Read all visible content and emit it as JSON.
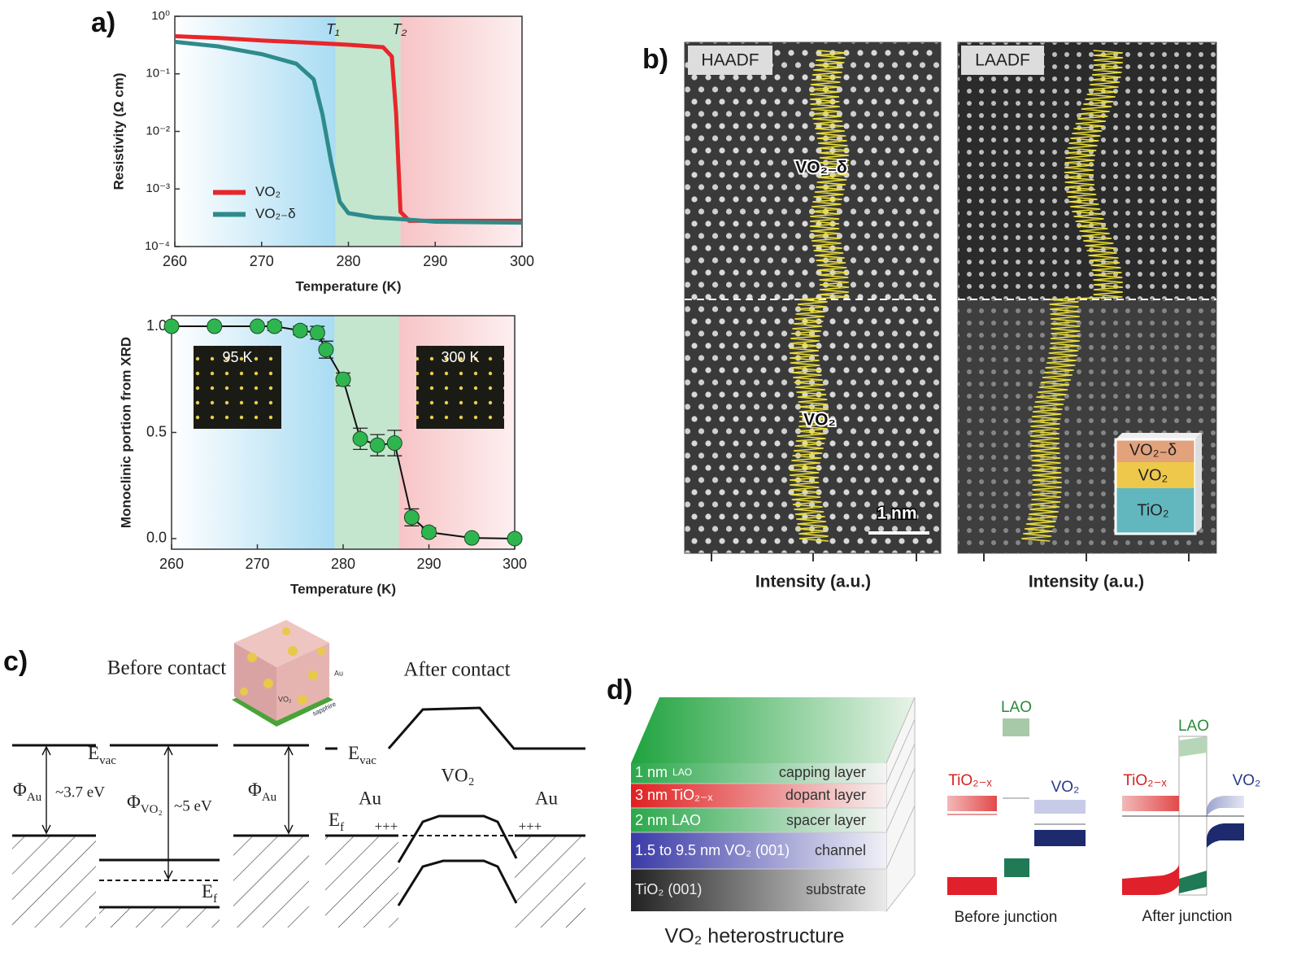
{
  "chart_data": [
    {
      "type": "line",
      "panel": "a)",
      "xlabel": "Temperature (K)",
      "ylabel": "Resistivity (Ω cm)",
      "log_y": true,
      "xlim": [
        260,
        300
      ],
      "xticks": [
        260,
        270,
        280,
        290,
        300
      ],
      "ylim": [
        0.0001,
        1
      ],
      "yticks": [
        {
          "value": 1,
          "label": "10⁰"
        },
        {
          "value": 0.1,
          "label": "10⁻¹"
        },
        {
          "value": 0.01,
          "label": "10⁻²"
        },
        {
          "value": 0.001,
          "label": "10⁻³"
        },
        {
          "value": 0.0001,
          "label": "10⁻⁴"
        }
      ],
      "legend": "center left",
      "regions": [
        {
          "from": 260,
          "to": 278.5,
          "colors": [
            "#ffffff",
            "#a9dcf3"
          ]
        },
        {
          "from": 278.5,
          "to": 286,
          "colors": [
            "#c4e6cf",
            "#c4e6cf"
          ]
        },
        {
          "from": 286,
          "to": 300,
          "colors": [
            "#f7c4c6",
            "#fdeff0"
          ]
        }
      ],
      "annotations": [
        {
          "text": "T₁",
          "x": 278.2
        },
        {
          "text": "T₂",
          "x": 285.9
        }
      ],
      "series": [
        {
          "name": "VO₂",
          "color": "#e8262b",
          "x": [
            260,
            265,
            270,
            275,
            280,
            284,
            285,
            285.5,
            286,
            287,
            290,
            300
          ],
          "values": [
            0.45,
            0.42,
            0.38,
            0.35,
            0.32,
            0.29,
            0.2,
            0.02,
            0.0004,
            0.00028,
            0.00028,
            0.00028
          ]
        },
        {
          "name": "VO₂₋δ",
          "color": "#2e8b8b",
          "x": [
            260,
            265,
            270,
            274,
            276,
            277,
            278,
            279,
            280,
            283,
            286,
            290,
            300
          ],
          "values": [
            0.36,
            0.3,
            0.22,
            0.15,
            0.08,
            0.02,
            0.003,
            0.0006,
            0.00038,
            0.00032,
            0.0003,
            0.00027,
            0.00026
          ]
        }
      ]
    },
    {
      "type": "scatter",
      "connect": true,
      "xlabel": "Temperature (K)",
      "ylabel": "Monoclinic portion from XRD",
      "xlim": [
        260,
        300
      ],
      "xticks": [
        260,
        270,
        280,
        290,
        300
      ],
      "ylim": [
        -0.05,
        1.05
      ],
      "yticks": [
        {
          "value": 0,
          "label": "0.0"
        },
        0.5,
        {
          "value": 1,
          "label": "1.0"
        }
      ],
      "regions": [
        {
          "from": 260,
          "to": 279,
          "colors": [
            "#ffffff",
            "#a9dcf3"
          ]
        },
        {
          "from": 279,
          "to": 286.5,
          "colors": [
            "#c4e6cf",
            "#c4e6cf"
          ]
        },
        {
          "from": 286.5,
          "to": 300,
          "colors": [
            "#f7c4c6",
            "#fdeff0"
          ]
        }
      ],
      "insets": [
        "95 K",
        "300 K"
      ],
      "series": [
        {
          "color": "#2fb54f",
          "x": [
            260,
            265,
            270,
            272,
            275,
            277,
            278,
            280,
            282,
            284,
            286,
            288,
            290,
            295,
            300
          ],
          "values": [
            1,
            1,
            1,
            1,
            0.98,
            0.97,
            0.89,
            0.75,
            0.47,
            0.44,
            0.45,
            0.1,
            0.03,
            0.003,
            0
          ],
          "errors": [
            0,
            0,
            0,
            0.02,
            0.02,
            0.03,
            0.04,
            0.03,
            0.05,
            0.05,
            0.06,
            0.04,
            0.02,
            0,
            0
          ]
        }
      ]
    }
  ],
  "panel_b": {
    "panel": "b)",
    "left": {
      "title": "HAADF",
      "upper": "VO₂₋δ",
      "lower": "VO₂",
      "scale": "1 nm",
      "axis": "Intensity (a.u.)"
    },
    "right": {
      "title": "LAADF",
      "axis": "Intensity (a.u.)",
      "cube": [
        "VO₂₋δ",
        "VO₂",
        "TiO₂"
      ]
    }
  },
  "panel_c": {
    "panel": "c)",
    "before": "Before contact",
    "after": "After contact",
    "cube": [
      "Au",
      "VO₂",
      "sapphire"
    ],
    "evac": {
      "main": "E",
      "sub": "vac"
    },
    "ef": {
      "main": "E",
      "sub": "f"
    },
    "phi_au": {
      "main": "Φ",
      "sub": "Au"
    },
    "phi_vo2": {
      "main": "Φ",
      "sub": "VO₂"
    },
    "gap_au": "~3.7 eV",
    "gap_vo2": "~5 eV",
    "au": "Au",
    "vo2": "VO₂",
    "charge": "+++"
  },
  "panel_d": {
    "panel": "d)",
    "layers": [
      {
        "left": "1 nm",
        "left_small": "LAO",
        "right": "capping layer"
      },
      {
        "left": "3 nm TiO₂₋ₓ",
        "right": "dopant layer"
      },
      {
        "left": "2 nm LAO",
        "right": "spacer layer"
      },
      {
        "left": "1.5 to 9.5 nm VO₂ (001)",
        "right": "channel"
      },
      {
        "left": "TiO₂ (001)",
        "right": "substrate"
      }
    ],
    "caption": "VO₂ heterostructure",
    "before": {
      "lao": "LAO",
      "tio": "TiO₂₋ₓ",
      "vo2": "VO₂",
      "caption": "Before junction"
    },
    "after": {
      "lao": "LAO",
      "tio": "TiO₂₋ₓ",
      "vo2": "VO₂",
      "caption": "After junction"
    }
  }
}
